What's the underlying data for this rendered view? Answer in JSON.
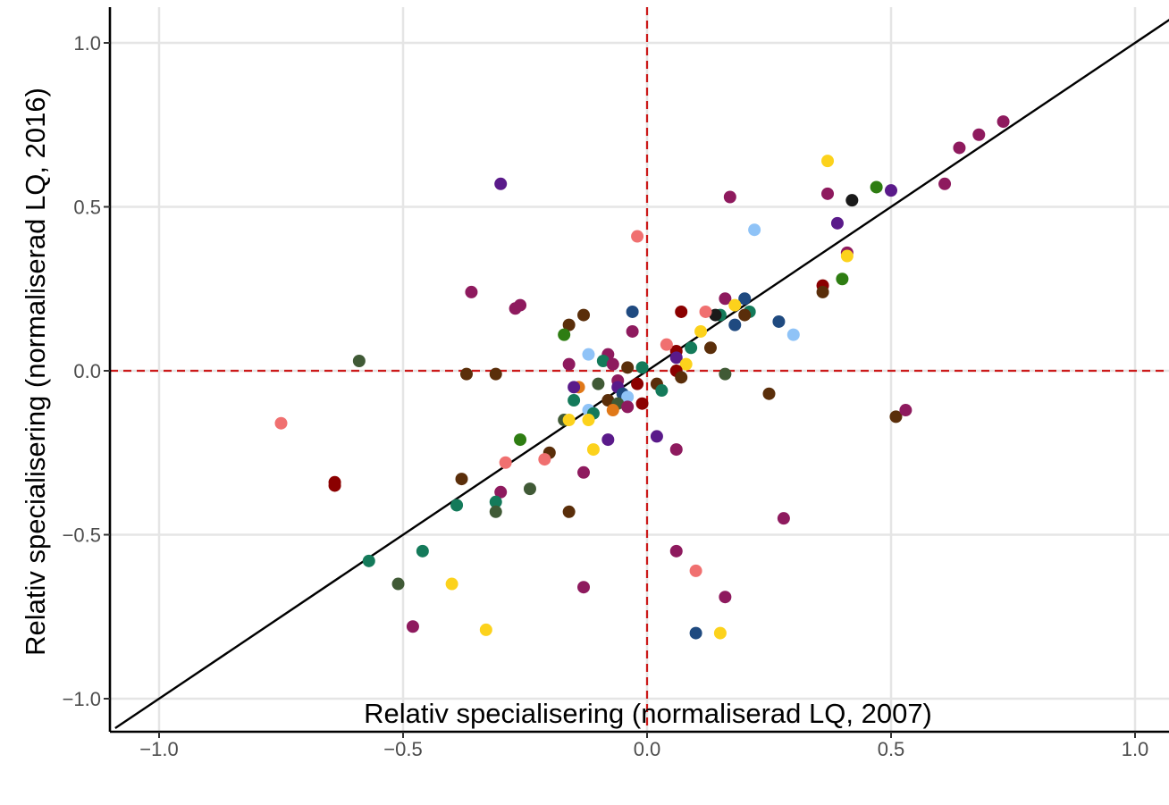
{
  "chart_data": {
    "type": "scatter",
    "title": "",
    "xlabel": "Relativ specialisering (normaliserad LQ, 2007)",
    "ylabel": "Relativ specialisering (normaliserad LQ, 2016)",
    "xlim": [
      -1.1,
      1.08
    ],
    "ylim": [
      -1.1,
      1.08
    ],
    "x_ticks": [
      -1.0,
      -0.5,
      0.0,
      0.5,
      1.0
    ],
    "y_ticks": [
      -1.0,
      -0.5,
      0.0,
      0.5,
      1.0
    ],
    "x_tick_labels": [
      "−1.0",
      "−0.5",
      "0.0",
      "0.5",
      "1.0"
    ],
    "y_tick_labels": [
      "−1.0",
      "−0.5",
      "0.0",
      "0.5",
      "1.0"
    ],
    "grid": true,
    "reference_lines": {
      "diagonal": "y = x",
      "diagonal_color": "#000000",
      "horizontal_dashed_y": 0,
      "vertical_dashed_x": 0,
      "dashed_color": "#cc1a1a"
    },
    "colors": {
      "magenta": "#8e1a5e",
      "dark_red": "#8b0000",
      "salmon": "#f07070",
      "brown": "#5a2e0a",
      "olive": "#405a36",
      "teal": "#147a5a",
      "green": "#2e7d12",
      "navy": "#1f4a80",
      "light_blue": "#8fc3f7",
      "yellow": "#fcd21c",
      "purple": "#5a1a8a",
      "orange": "#e07818",
      "black": "#1a1a1a"
    },
    "points": [
      {
        "x": 0.73,
        "y": 0.76,
        "c": "magenta"
      },
      {
        "x": 0.68,
        "y": 0.72,
        "c": "magenta"
      },
      {
        "x": 0.64,
        "y": 0.68,
        "c": "magenta"
      },
      {
        "x": 0.61,
        "y": 0.57,
        "c": "magenta"
      },
      {
        "x": 0.37,
        "y": 0.64,
        "c": "yellow"
      },
      {
        "x": 0.17,
        "y": 0.53,
        "c": "magenta"
      },
      {
        "x": 0.37,
        "y": 0.54,
        "c": "magenta"
      },
      {
        "x": 0.47,
        "y": 0.56,
        "c": "green"
      },
      {
        "x": 0.5,
        "y": 0.55,
        "c": "purple"
      },
      {
        "x": 0.42,
        "y": 0.52,
        "c": "black"
      },
      {
        "x": 0.39,
        "y": 0.45,
        "c": "purple"
      },
      {
        "x": 0.22,
        "y": 0.43,
        "c": "light_blue"
      },
      {
        "x": 0.41,
        "y": 0.36,
        "c": "magenta"
      },
      {
        "x": 0.41,
        "y": 0.35,
        "c": "yellow"
      },
      {
        "x": 0.4,
        "y": 0.28,
        "c": "green"
      },
      {
        "x": 0.36,
        "y": 0.26,
        "c": "dark_red"
      },
      {
        "x": 0.36,
        "y": 0.24,
        "c": "brown"
      },
      {
        "x": 0.3,
        "y": 0.11,
        "c": "light_blue"
      },
      {
        "x": 0.27,
        "y": 0.15,
        "c": "navy"
      },
      {
        "x": 0.2,
        "y": 0.22,
        "c": "navy"
      },
      {
        "x": 0.16,
        "y": 0.22,
        "c": "magenta"
      },
      {
        "x": 0.21,
        "y": 0.18,
        "c": "teal"
      },
      {
        "x": 0.18,
        "y": 0.2,
        "c": "yellow"
      },
      {
        "x": 0.2,
        "y": 0.17,
        "c": "brown"
      },
      {
        "x": 0.15,
        "y": 0.17,
        "c": "teal"
      },
      {
        "x": 0.14,
        "y": 0.17,
        "c": "black"
      },
      {
        "x": 0.12,
        "y": 0.18,
        "c": "salmon"
      },
      {
        "x": 0.18,
        "y": 0.14,
        "c": "navy"
      },
      {
        "x": 0.07,
        "y": 0.18,
        "c": "dark_red"
      },
      {
        "x": 0.11,
        "y": 0.12,
        "c": "yellow"
      },
      {
        "x": 0.13,
        "y": 0.07,
        "c": "brown"
      },
      {
        "x": 0.09,
        "y": 0.07,
        "c": "teal"
      },
      {
        "x": 0.06,
        "y": 0.06,
        "c": "dark_red"
      },
      {
        "x": 0.04,
        "y": 0.08,
        "c": "salmon"
      },
      {
        "x": 0.06,
        "y": 0.04,
        "c": "purple"
      },
      {
        "x": 0.08,
        "y": 0.02,
        "c": "yellow"
      },
      {
        "x": 0.06,
        "y": 0.0,
        "c": "dark_red"
      },
      {
        "x": 0.07,
        "y": -0.02,
        "c": "brown"
      },
      {
        "x": 0.02,
        "y": -0.04,
        "c": "brown"
      },
      {
        "x": 0.03,
        "y": -0.06,
        "c": "teal"
      },
      {
        "x": 0.16,
        "y": -0.01,
        "c": "olive"
      },
      {
        "x": 0.25,
        "y": -0.07,
        "c": "brown"
      },
      {
        "x": -0.02,
        "y": 0.41,
        "c": "salmon"
      },
      {
        "x": -0.03,
        "y": 0.18,
        "c": "navy"
      },
      {
        "x": -0.03,
        "y": 0.12,
        "c": "magenta"
      },
      {
        "x": -0.13,
        "y": 0.17,
        "c": "brown"
      },
      {
        "x": -0.16,
        "y": 0.14,
        "c": "brown"
      },
      {
        "x": -0.17,
        "y": 0.11,
        "c": "green"
      },
      {
        "x": -0.12,
        "y": 0.05,
        "c": "light_blue"
      },
      {
        "x": -0.08,
        "y": 0.05,
        "c": "magenta"
      },
      {
        "x": -0.16,
        "y": 0.02,
        "c": "magenta"
      },
      {
        "x": -0.09,
        "y": 0.03,
        "c": "teal"
      },
      {
        "x": -0.07,
        "y": 0.02,
        "c": "magenta"
      },
      {
        "x": -0.04,
        "y": 0.01,
        "c": "brown"
      },
      {
        "x": -0.01,
        "y": 0.01,
        "c": "teal"
      },
      {
        "x": -0.02,
        "y": -0.04,
        "c": "dark_red"
      },
      {
        "x": -0.06,
        "y": -0.03,
        "c": "magenta"
      },
      {
        "x": -0.06,
        "y": -0.05,
        "c": "purple"
      },
      {
        "x": -0.1,
        "y": -0.04,
        "c": "olive"
      },
      {
        "x": -0.14,
        "y": -0.05,
        "c": "orange"
      },
      {
        "x": -0.15,
        "y": -0.05,
        "c": "purple"
      },
      {
        "x": -0.15,
        "y": -0.09,
        "c": "teal"
      },
      {
        "x": -0.05,
        "y": -0.07,
        "c": "navy"
      },
      {
        "x": -0.04,
        "y": -0.08,
        "c": "light_blue"
      },
      {
        "x": -0.08,
        "y": -0.09,
        "c": "brown"
      },
      {
        "x": -0.06,
        "y": -0.1,
        "c": "olive"
      },
      {
        "x": -0.01,
        "y": -0.1,
        "c": "dark_red"
      },
      {
        "x": -0.04,
        "y": -0.11,
        "c": "magenta"
      },
      {
        "x": -0.07,
        "y": -0.12,
        "c": "orange"
      },
      {
        "x": -0.12,
        "y": -0.12,
        "c": "light_blue"
      },
      {
        "x": -0.11,
        "y": -0.13,
        "c": "teal"
      },
      {
        "x": -0.12,
        "y": -0.15,
        "c": "yellow"
      },
      {
        "x": -0.17,
        "y": -0.15,
        "c": "olive"
      },
      {
        "x": -0.16,
        "y": -0.15,
        "c": "yellow"
      },
      {
        "x": -0.08,
        "y": -0.21,
        "c": "purple"
      },
      {
        "x": 0.02,
        "y": -0.2,
        "c": "purple"
      },
      {
        "x": 0.06,
        "y": -0.24,
        "c": "magenta"
      },
      {
        "x": -0.11,
        "y": -0.24,
        "c": "yellow"
      },
      {
        "x": -0.2,
        "y": -0.25,
        "c": "brown"
      },
      {
        "x": -0.21,
        "y": -0.27,
        "c": "salmon"
      },
      {
        "x": -0.26,
        "y": -0.21,
        "c": "green"
      },
      {
        "x": -0.29,
        "y": -0.28,
        "c": "salmon"
      },
      {
        "x": -0.13,
        "y": -0.31,
        "c": "magenta"
      },
      {
        "x": -0.24,
        "y": -0.36,
        "c": "olive"
      },
      {
        "x": -0.3,
        "y": -0.37,
        "c": "magenta"
      },
      {
        "x": -0.38,
        "y": -0.33,
        "c": "brown"
      },
      {
        "x": -0.16,
        "y": -0.43,
        "c": "brown"
      },
      {
        "x": -0.31,
        "y": -0.4,
        "c": "teal"
      },
      {
        "x": -0.31,
        "y": -0.43,
        "c": "olive"
      },
      {
        "x": -0.39,
        "y": -0.41,
        "c": "teal"
      },
      {
        "x": -0.46,
        "y": -0.55,
        "c": "teal"
      },
      {
        "x": -0.57,
        "y": -0.58,
        "c": "teal"
      },
      {
        "x": -0.51,
        "y": -0.65,
        "c": "olive"
      },
      {
        "x": -0.4,
        "y": -0.65,
        "c": "yellow"
      },
      {
        "x": -0.13,
        "y": -0.66,
        "c": "magenta"
      },
      {
        "x": -0.48,
        "y": -0.78,
        "c": "magenta"
      },
      {
        "x": -0.33,
        "y": -0.79,
        "c": "yellow"
      },
      {
        "x": -0.64,
        "y": -0.34,
        "c": "dark_red"
      },
      {
        "x": -0.64,
        "y": -0.35,
        "c": "dark_red"
      },
      {
        "x": -0.75,
        "y": -0.16,
        "c": "salmon"
      },
      {
        "x": -0.59,
        "y": 0.03,
        "c": "olive"
      },
      {
        "x": -0.37,
        "y": -0.01,
        "c": "brown"
      },
      {
        "x": -0.31,
        "y": -0.01,
        "c": "brown"
      },
      {
        "x": -0.36,
        "y": 0.24,
        "c": "magenta"
      },
      {
        "x": -0.26,
        "y": 0.2,
        "c": "magenta"
      },
      {
        "x": -0.27,
        "y": 0.19,
        "c": "magenta"
      },
      {
        "x": -0.3,
        "y": 0.57,
        "c": "purple"
      },
      {
        "x": 0.06,
        "y": -0.55,
        "c": "magenta"
      },
      {
        "x": 0.1,
        "y": -0.61,
        "c": "salmon"
      },
      {
        "x": 0.16,
        "y": -0.69,
        "c": "magenta"
      },
      {
        "x": 0.1,
        "y": -0.8,
        "c": "navy"
      },
      {
        "x": 0.15,
        "y": -0.8,
        "c": "yellow"
      },
      {
        "x": 0.28,
        "y": -0.45,
        "c": "magenta"
      },
      {
        "x": 0.51,
        "y": -0.14,
        "c": "brown"
      },
      {
        "x": 0.53,
        "y": -0.12,
        "c": "magenta"
      }
    ]
  }
}
